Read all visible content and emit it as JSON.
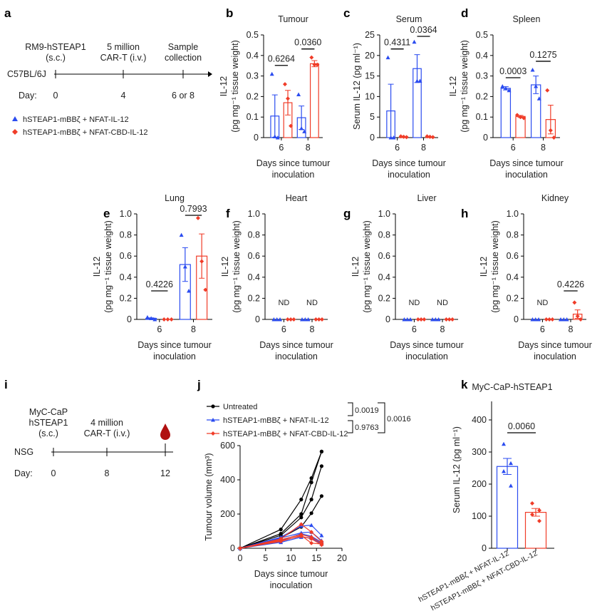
{
  "colors": {
    "blue": "#2b4cf0",
    "red": "#f03c28",
    "black": "#000000"
  },
  "panel_letters": [
    "a",
    "b",
    "c",
    "d",
    "e",
    "f",
    "g",
    "h",
    "i",
    "j",
    "k"
  ],
  "scheme_a": {
    "strain": "C57BL/6J",
    "day_label": "Day:",
    "events": [
      {
        "day": "0",
        "label1": "RM9-hSTEAP1",
        "label2": "(s.c.)"
      },
      {
        "day": "4",
        "label1": "5 million",
        "label2": "CAR-T (i.v.)"
      },
      {
        "day": "6 or 8",
        "label1": "Sample",
        "label2": "collection"
      }
    ],
    "legend": [
      "hSTEAP1-mBBζ + NFAT-IL-12",
      "hSTEAP1-mBBζ + NFAT-CBD-IL-12"
    ]
  },
  "scheme_i": {
    "strain": "NSG",
    "day_label": "Day:",
    "events": [
      {
        "day": "0",
        "label1": "MyC-CaP",
        "label2": "hSTEAP1",
        "label3": "(s.c.)"
      },
      {
        "day": "8",
        "label1": "4 million",
        "label2": "CAR-T (i.v.)"
      },
      {
        "day": "12",
        "label1": "blood-drop"
      }
    ]
  },
  "chart_data": [
    {
      "panel": "b",
      "type": "bar",
      "title": "Tumour",
      "ylabel": [
        "IL-12",
        "(pg mg⁻¹ tissue weight)"
      ],
      "xlabel": [
        "Days since tumour",
        "inoculation"
      ],
      "ylim": [
        0,
        0.5
      ],
      "yticks": [
        "0",
        "0.1",
        "0.2",
        "0.3",
        "0.4",
        "0.5"
      ],
      "groups": [
        {
          "label": "6",
          "p": "0.6264",
          "bars": [
            {
              "mean": 0.105,
              "sem": 0.103,
              "points": [
                0.31,
                0.005,
                0.0
              ]
            },
            {
              "mean": 0.17,
              "sem": 0.06,
              "points": [
                0.26,
                0.19,
                0.057
              ]
            }
          ]
        },
        {
          "label": "8",
          "p": "0.0360",
          "bars": [
            {
              "mean": 0.097,
              "sem": 0.057,
              "points": [
                0.21,
                0.045,
                0.03
              ]
            },
            {
              "mean": 0.36,
              "sem": 0.015,
              "points": [
                0.39,
                0.355,
                0.355
              ]
            }
          ]
        }
      ]
    },
    {
      "panel": "c",
      "type": "bar",
      "title": "Serum",
      "ylabel": [
        "",
        "Serum IL-12 (pg ml⁻¹)"
      ],
      "xlabel": [
        "Days since tumour",
        "inoculation"
      ],
      "ylim": [
        0,
        25
      ],
      "yticks": [
        "0",
        "5",
        "10",
        "15",
        "20",
        "25"
      ],
      "groups": [
        {
          "label": "6",
          "p": "0.4311",
          "bars": [
            {
              "mean": 6.5,
              "sem": 6.5,
              "points": [
                19.5,
                0,
                0
              ]
            },
            {
              "mean": 0.2,
              "sem": 0.05,
              "points": [
                0.3,
                0.2,
                0.1
              ]
            }
          ]
        },
        {
          "label": "8",
          "p": "0.0364",
          "bars": [
            {
              "mean": 16.8,
              "sem": 3.4,
              "points": [
                23.3,
                13.8,
                13.8
              ]
            },
            {
              "mean": 0.2,
              "sem": 0.05,
              "points": [
                0.3,
                0.2,
                0.1
              ]
            }
          ]
        }
      ]
    },
    {
      "panel": "d",
      "type": "bar",
      "title": "Spleen",
      "ylabel": [
        "IL-12",
        "(pg mg⁻¹ tissue weight)"
      ],
      "xlabel": [
        "Days since tumour",
        "inoculation"
      ],
      "ylim": [
        0,
        0.5
      ],
      "yticks": [
        "0",
        "0.1",
        "0.2",
        "0.3",
        "0.4",
        "0.5"
      ],
      "groups": [
        {
          "label": "6",
          "p": "0.0003",
          "bars": [
            {
              "mean": 0.24,
              "sem": 0.008,
              "points": [
                0.25,
                0.24,
                0.23
              ]
            },
            {
              "mean": 0.103,
              "sem": 0.005,
              "points": [
                0.11,
                0.1,
                0.095
              ]
            }
          ]
        },
        {
          "label": "8",
          "p": "0.1275",
          "bars": [
            {
              "mean": 0.257,
              "sem": 0.043,
              "points": [
                0.33,
                0.25,
                0.19
              ]
            },
            {
              "mean": 0.088,
              "sem": 0.07,
              "points": [
                0.23,
                0.035,
                0.0
              ]
            }
          ]
        }
      ]
    },
    {
      "panel": "e",
      "type": "bar",
      "title": "Lung",
      "ylabel": [
        "IL-12",
        "(pg mg⁻¹ tissue weight)"
      ],
      "xlabel": [
        "Days since tumour",
        "inoculation"
      ],
      "ylim": [
        0,
        1.0
      ],
      "yticks": [
        "0",
        "0.2",
        "0.4",
        "0.6",
        "0.8",
        "1.0"
      ],
      "groups": [
        {
          "label": "6",
          "p": "0.4226",
          "bars": [
            {
              "mean": 0.01,
              "sem": 0.005,
              "points": [
                0.02,
                0.01,
                0.0
              ]
            },
            {
              "mean": 0,
              "sem": 0,
              "points": [
                0,
                0,
                0
              ]
            }
          ]
        },
        {
          "label": "8",
          "p": "0.7993",
          "bars": [
            {
              "mean": 0.52,
              "sem": 0.16,
              "points": [
                0.8,
                0.5,
                0.27
              ]
            },
            {
              "mean": 0.6,
              "sem": 0.21,
              "points": [
                0.96,
                0.55,
                0.28
              ]
            }
          ]
        }
      ]
    },
    {
      "panel": "f",
      "type": "bar",
      "title": "Heart",
      "ylabel": [
        "IL-12",
        "(pg mg⁻¹ tissue weight)"
      ],
      "xlabel": [
        "Days since tumour",
        "inoculation"
      ],
      "ylim": [
        0,
        1.0
      ],
      "yticks": [
        "0",
        "0.2",
        "0.4",
        "0.6",
        "0.8",
        "1.0"
      ],
      "groups": [
        {
          "label": "6",
          "nd": "ND",
          "bars": [
            {
              "mean": 0,
              "sem": 0,
              "points": [
                0,
                0,
                0
              ]
            },
            {
              "mean": 0,
              "sem": 0,
              "points": [
                0,
                0,
                0
              ]
            }
          ]
        },
        {
          "label": "8",
          "nd": "ND",
          "bars": [
            {
              "mean": 0,
              "sem": 0,
              "points": [
                0,
                0,
                0
              ]
            },
            {
              "mean": 0,
              "sem": 0,
              "points": [
                0,
                0,
                0
              ]
            }
          ]
        }
      ]
    },
    {
      "panel": "g",
      "type": "bar",
      "title": "Liver",
      "ylabel": [
        "IL-12",
        "(pg mg⁻¹ tissue weight)"
      ],
      "xlabel": [
        "Days since tumour",
        "inoculation"
      ],
      "ylim": [
        0,
        1.0
      ],
      "yticks": [
        "0",
        "0.2",
        "0.4",
        "0.6",
        "0.8",
        "1.0"
      ],
      "groups": [
        {
          "label": "6",
          "nd": "ND",
          "bars": [
            {
              "mean": 0,
              "sem": 0,
              "points": [
                0,
                0,
                0
              ]
            },
            {
              "mean": 0,
              "sem": 0,
              "points": [
                0,
                0,
                0
              ]
            }
          ]
        },
        {
          "label": "8",
          "nd": "ND",
          "bars": [
            {
              "mean": 0,
              "sem": 0,
              "points": [
                0,
                0,
                0
              ]
            },
            {
              "mean": 0,
              "sem": 0,
              "points": [
                0,
                0,
                0
              ]
            }
          ]
        }
      ]
    },
    {
      "panel": "h",
      "type": "bar",
      "title": "Kidney",
      "ylabel": [
        "IL-12",
        "(pg mg⁻¹ tissue weight)"
      ],
      "xlabel": [
        "Days since tumour",
        "inoculation"
      ],
      "ylim": [
        0,
        1.0
      ],
      "yticks": [
        "0",
        "0.2",
        "0.4",
        "0.6",
        "0.8",
        "1.0"
      ],
      "groups": [
        {
          "label": "6",
          "nd": "ND",
          "bars": [
            {
              "mean": 0,
              "sem": 0,
              "points": [
                0,
                0,
                0
              ]
            },
            {
              "mean": 0,
              "sem": 0,
              "points": [
                0,
                0,
                0
              ]
            }
          ]
        },
        {
          "label": "8",
          "p": "0.4226",
          "bars": [
            {
              "mean": 0,
              "sem": 0,
              "points": [
                0,
                0,
                0
              ]
            },
            {
              "mean": 0.05,
              "sem": 0.04,
              "points": [
                0.16,
                0.03,
                0.0
              ]
            }
          ]
        }
      ]
    },
    {
      "panel": "j",
      "type": "line",
      "ylabel": "Tumour volume (mm³)",
      "xlabel": [
        "Days since tumour",
        "inoculation"
      ],
      "xlim": [
        0,
        20
      ],
      "ylim": [
        0,
        600
      ],
      "xticks": [
        "0",
        "5",
        "10",
        "15",
        "20"
      ],
      "yticks": [
        "0",
        "200",
        "400",
        "600"
      ],
      "x": [
        0,
        8,
        12,
        14,
        16
      ],
      "series": [
        {
          "name": "Untreated",
          "color": "black",
          "lines": [
            [
              0,
              110,
              285,
              410,
              565
            ],
            [
              0,
              85,
              200,
              385,
              565
            ],
            [
              0,
              75,
              180,
              285,
              480
            ],
            [
              0,
              60,
              125,
              205,
              305
            ]
          ]
        },
        {
          "name": "hSTEAP1-mBBζ + NFAT-IL-12",
          "color": "blue",
          "lines": [
            [
              0,
              65,
              130,
              135,
              75
            ],
            [
              0,
              60,
              90,
              95,
              45
            ],
            [
              0,
              45,
              85,
              70,
              35
            ],
            [
              0,
              35,
              65,
              60,
              25
            ]
          ]
        },
        {
          "name": "hSTEAP1-mBBζ + NFAT-CBD-IL-12",
          "color": "red",
          "lines": [
            [
              0,
              55,
              140,
              95,
              40
            ],
            [
              0,
              50,
              80,
              65,
              30
            ],
            [
              0,
              40,
              75,
              30,
              25
            ],
            [
              0,
              45,
              70,
              55,
              20
            ]
          ]
        }
      ],
      "stats": [
        "0.0019",
        "0.9763",
        "0.0016"
      ]
    },
    {
      "panel": "k",
      "type": "bar",
      "title": "MyC-CaP-hSTEAP1",
      "ylabel": "Serum IL-12 (pg ml⁻¹)",
      "ylim": [
        0,
        400
      ],
      "yticks": [
        "0",
        "100",
        "200",
        "300",
        "400"
      ],
      "categories": [
        "hSTEAP1-mBBζ + NFAT-IL-12",
        "hSTEAP1-mBBζ + NFAT-CBD-IL-12"
      ],
      "p": "0.0060",
      "bars": [
        {
          "mean": 255,
          "sem": 25,
          "points": [
            325,
            265,
            240,
            195
          ]
        },
        {
          "mean": 112,
          "sem": 12,
          "points": [
            140,
            118,
            105,
            85
          ]
        }
      ]
    }
  ]
}
